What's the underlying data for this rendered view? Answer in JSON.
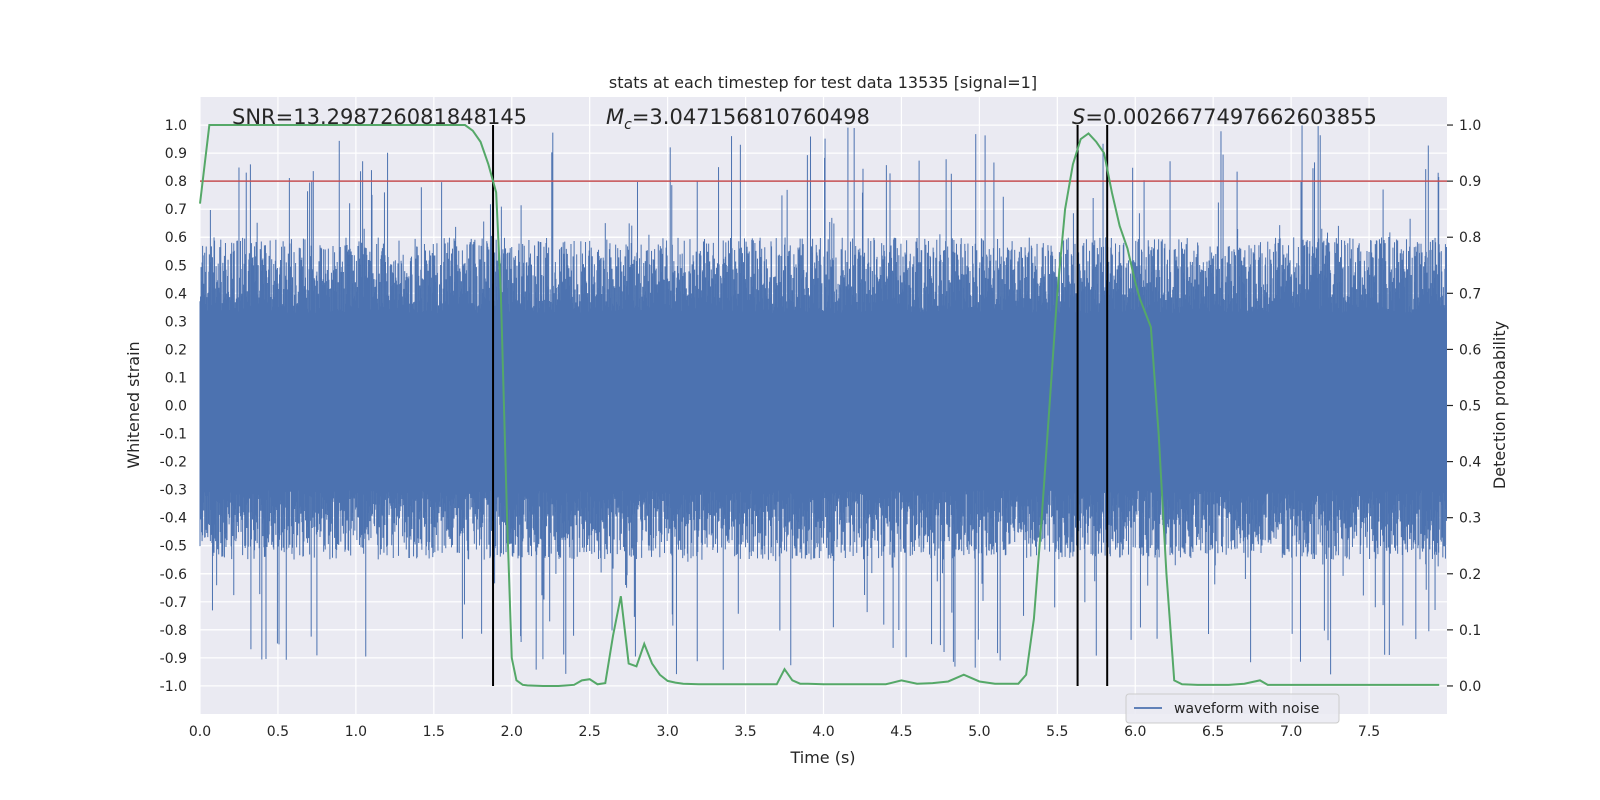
{
  "chart_data": {
    "type": "line",
    "title": "stats at each timestep for test data 13535 [signal=1]",
    "xlabel": "Time (s)",
    "ylabel": "Whitened strain",
    "y2label": "Detection probability",
    "xlim": [
      0.0,
      8.0
    ],
    "ylim": [
      -1.1,
      1.1
    ],
    "y2lim": [
      -0.05,
      1.05
    ],
    "x_ticks": [
      0.0,
      0.5,
      1.0,
      1.5,
      2.0,
      2.5,
      3.0,
      3.5,
      4.0,
      4.5,
      5.0,
      5.5,
      6.0,
      6.5,
      7.0,
      7.5
    ],
    "x_tick_labels": [
      "0.0",
      "0.5",
      "1.0",
      "1.5",
      "2.0",
      "2.5",
      "3.0",
      "3.5",
      "4.0",
      "4.5",
      "5.0",
      "5.5",
      "6.0",
      "6.5",
      "7.0",
      "7.5"
    ],
    "y_ticks": [
      1.0,
      0.9,
      0.8,
      0.7,
      0.6,
      0.5,
      0.4,
      0.3,
      0.2,
      0.1,
      0.0,
      -0.1,
      -0.2,
      -0.3,
      -0.4,
      -0.5,
      -0.6,
      -0.7,
      -0.8,
      -0.9,
      -1.0
    ],
    "y_tick_labels": [
      "1.0",
      "0.9",
      "0.8",
      "0.7",
      "0.6",
      "0.5",
      "0.4",
      "0.3",
      "0.2",
      "0.1",
      "0.0",
      "-0.1",
      "-0.2",
      "-0.3",
      "-0.4",
      "-0.5",
      "-0.6",
      "-0.7",
      "-0.8",
      "-0.9",
      "-1.0"
    ],
    "y2_ticks": [
      1.0,
      0.9,
      0.8,
      0.7,
      0.6,
      0.5,
      0.4,
      0.3,
      0.2,
      0.1,
      0.0
    ],
    "y2_tick_labels": [
      "1.0",
      "0.9",
      "0.8",
      "0.7",
      "0.6",
      "0.5",
      "0.4",
      "0.3",
      "0.2",
      "0.1",
      "0.0"
    ],
    "annotations": {
      "snr": "SNR=13.298726081848145",
      "mc_symbol": "M",
      "mc_sub": "c",
      "mc_value": "=3.047156810760498",
      "s_symbol": "S",
      "s_value": "=0.0026677497662603855"
    },
    "threshold": {
      "y2": 0.9,
      "color": "#c44e52"
    },
    "vertical_lines": [
      1.88,
      5.63,
      5.82
    ],
    "waveform": {
      "name": "waveform with noise",
      "color": "#4c72b0",
      "envelope_high": 0.6,
      "envelope_low": -0.55,
      "max": 1.0,
      "min": -0.97
    },
    "probability": {
      "color": "#55a868",
      "x": [
        0.0,
        0.03,
        0.06,
        0.1,
        0.2,
        0.4,
        0.6,
        0.8,
        1.0,
        1.2,
        1.4,
        1.6,
        1.7,
        1.75,
        1.8,
        1.85,
        1.9,
        1.93,
        1.97,
        2.0,
        2.03,
        2.07,
        2.1,
        2.2,
        2.3,
        2.4,
        2.45,
        2.5,
        2.55,
        2.6,
        2.65,
        2.7,
        2.75,
        2.8,
        2.85,
        2.9,
        2.95,
        3.0,
        3.05,
        3.1,
        3.2,
        3.4,
        3.6,
        3.7,
        3.75,
        3.8,
        3.85,
        3.9,
        4.0,
        4.2,
        4.4,
        4.5,
        4.6,
        4.7,
        4.8,
        4.9,
        5.0,
        5.1,
        5.2,
        5.25,
        5.3,
        5.35,
        5.4,
        5.45,
        5.5,
        5.55,
        5.6,
        5.65,
        5.7,
        5.75,
        5.8,
        5.85,
        5.9,
        5.95,
        6.0,
        6.03,
        6.1,
        6.15,
        6.2,
        6.25,
        6.3,
        6.4,
        6.6,
        6.7,
        6.8,
        6.85,
        6.9,
        7.0,
        7.2,
        7.5,
        7.8,
        7.95
      ],
      "values": [
        0.86,
        0.93,
        1.0,
        1.0,
        1.0,
        1.0,
        1.0,
        1.0,
        1.0,
        1.0,
        1.0,
        1.0,
        1.0,
        0.99,
        0.97,
        0.93,
        0.88,
        0.7,
        0.3,
        0.05,
        0.01,
        0.002,
        0.001,
        0.0,
        0.0,
        0.002,
        0.01,
        0.012,
        0.003,
        0.005,
        0.09,
        0.16,
        0.04,
        0.035,
        0.075,
        0.04,
        0.02,
        0.009,
        0.006,
        0.004,
        0.003,
        0.003,
        0.003,
        0.003,
        0.03,
        0.01,
        0.004,
        0.004,
        0.003,
        0.003,
        0.003,
        0.01,
        0.004,
        0.005,
        0.008,
        0.02,
        0.008,
        0.004,
        0.004,
        0.004,
        0.02,
        0.12,
        0.3,
        0.5,
        0.7,
        0.85,
        0.93,
        0.975,
        0.985,
        0.97,
        0.95,
        0.88,
        0.82,
        0.78,
        0.72,
        0.69,
        0.64,
        0.45,
        0.2,
        0.01,
        0.003,
        0.002,
        0.002,
        0.004,
        0.01,
        0.002,
        0.002,
        0.002,
        0.002,
        0.002,
        0.002,
        0.002
      ]
    },
    "legend": {
      "label": "waveform with noise",
      "location": "lower-right"
    }
  }
}
